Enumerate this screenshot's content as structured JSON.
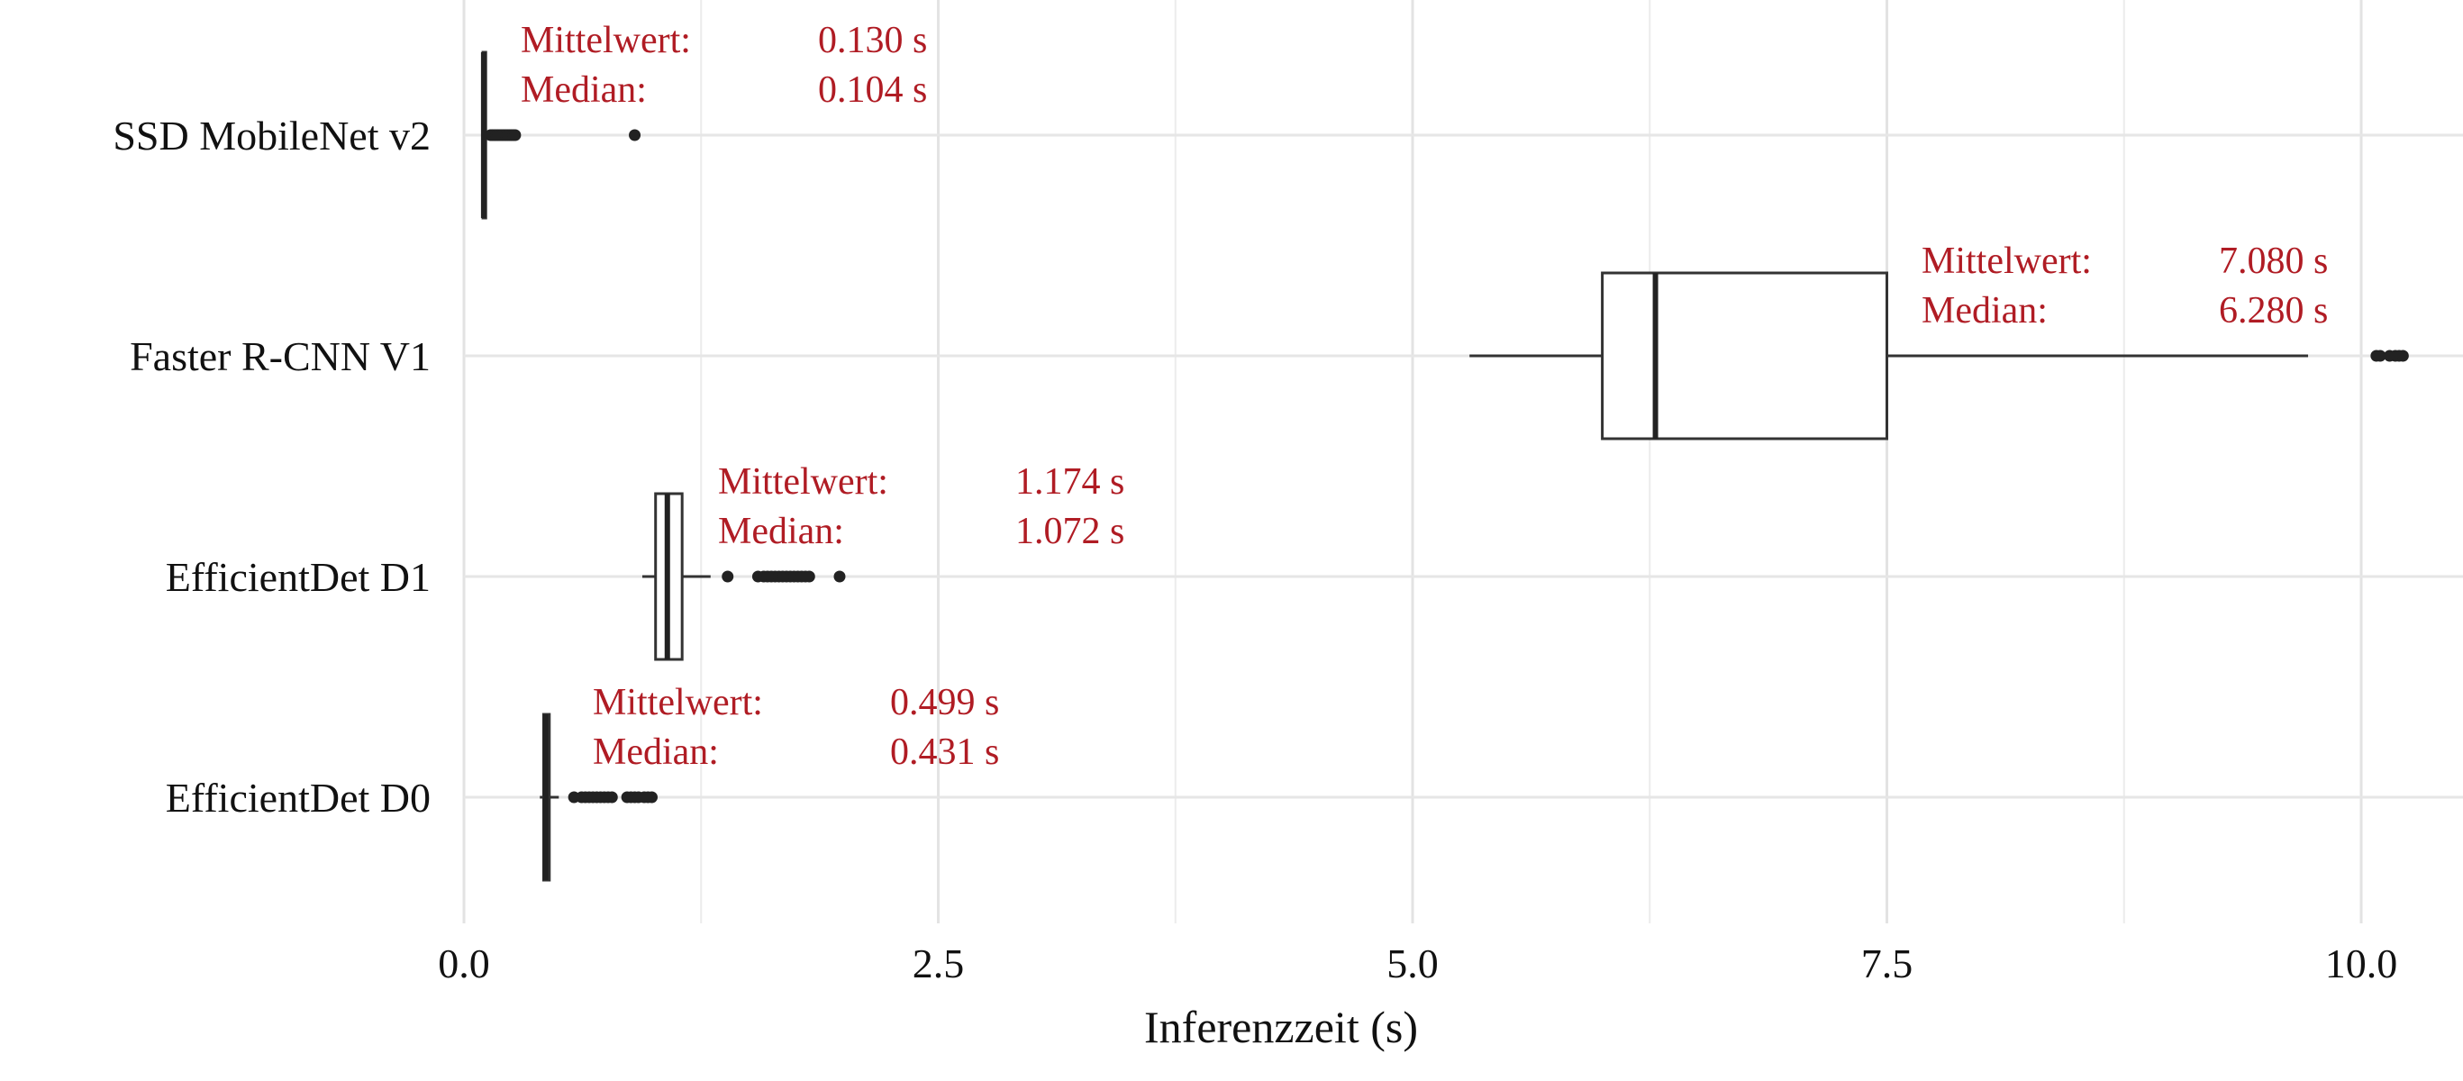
{
  "chart_data": {
    "type": "boxplot",
    "orientation": "horizontal",
    "title": "",
    "xlabel": "Inferenzzeit (s)",
    "ylabel": "",
    "xlim": [
      0,
      10.3
    ],
    "x_ticks": [
      0.0,
      2.5,
      5.0,
      7.5,
      10.0
    ],
    "x_tick_labels": [
      "0.0",
      "2.5",
      "5.0",
      "7.5",
      "10.0"
    ],
    "grid": true,
    "annotation_color": "#b01c24",
    "categories": [
      "SSD MobileNet v2",
      "Faster R-CNN V1",
      "EfficientDet D1",
      "EfficientDet D0"
    ],
    "series": [
      {
        "category": "SSD MobileNet v2",
        "whisker_low": 0.1,
        "q1": 0.1,
        "median": 0.104,
        "q3": 0.115,
        "whisker_high": 0.13,
        "outliers": [
          0.14,
          0.15,
          0.16,
          0.17,
          0.18,
          0.19,
          0.2,
          0.21,
          0.22,
          0.23,
          0.24,
          0.25,
          0.26,
          0.27,
          0.9
        ],
        "mean_label": "Mittelwert:",
        "mean_value": "0.130 s",
        "median_label": "Median:",
        "median_value": "0.104 s"
      },
      {
        "category": "Faster R-CNN V1",
        "whisker_low": 5.3,
        "q1": 6.0,
        "median": 6.28,
        "q3": 7.5,
        "whisker_high": 9.72,
        "outliers": [
          10.08,
          10.1,
          10.15,
          10.18,
          10.2,
          10.22
        ],
        "mean_label": "Mittelwert:",
        "mean_value": "7.080 s",
        "median_label": "Median:",
        "median_value": "6.280 s"
      },
      {
        "category": "EfficientDet D1",
        "whisker_low": 0.94,
        "q1": 1.01,
        "median": 1.072,
        "q3": 1.15,
        "whisker_high": 1.3,
        "outliers": [
          1.39,
          1.55,
          1.58,
          1.6,
          1.62,
          1.64,
          1.66,
          1.68,
          1.7,
          1.72,
          1.74,
          1.76,
          1.78,
          1.8,
          1.82,
          1.98
        ],
        "mean_label": "Mittelwert:",
        "mean_value": "1.174 s",
        "median_label": "Median:",
        "median_value": "1.072 s"
      },
      {
        "category": "EfficientDet D0",
        "whisker_low": 0.4,
        "q1": 0.42,
        "median": 0.431,
        "q3": 0.45,
        "whisker_high": 0.5,
        "outliers": [
          0.58,
          0.62,
          0.64,
          0.66,
          0.68,
          0.7,
          0.72,
          0.74,
          0.76,
          0.78,
          0.86,
          0.88,
          0.9,
          0.92,
          0.95,
          0.97,
          0.99
        ],
        "mean_label": "Mittelwert:",
        "mean_value": "0.499 s",
        "median_label": "Median:",
        "median_value": "0.431 s"
      }
    ]
  }
}
